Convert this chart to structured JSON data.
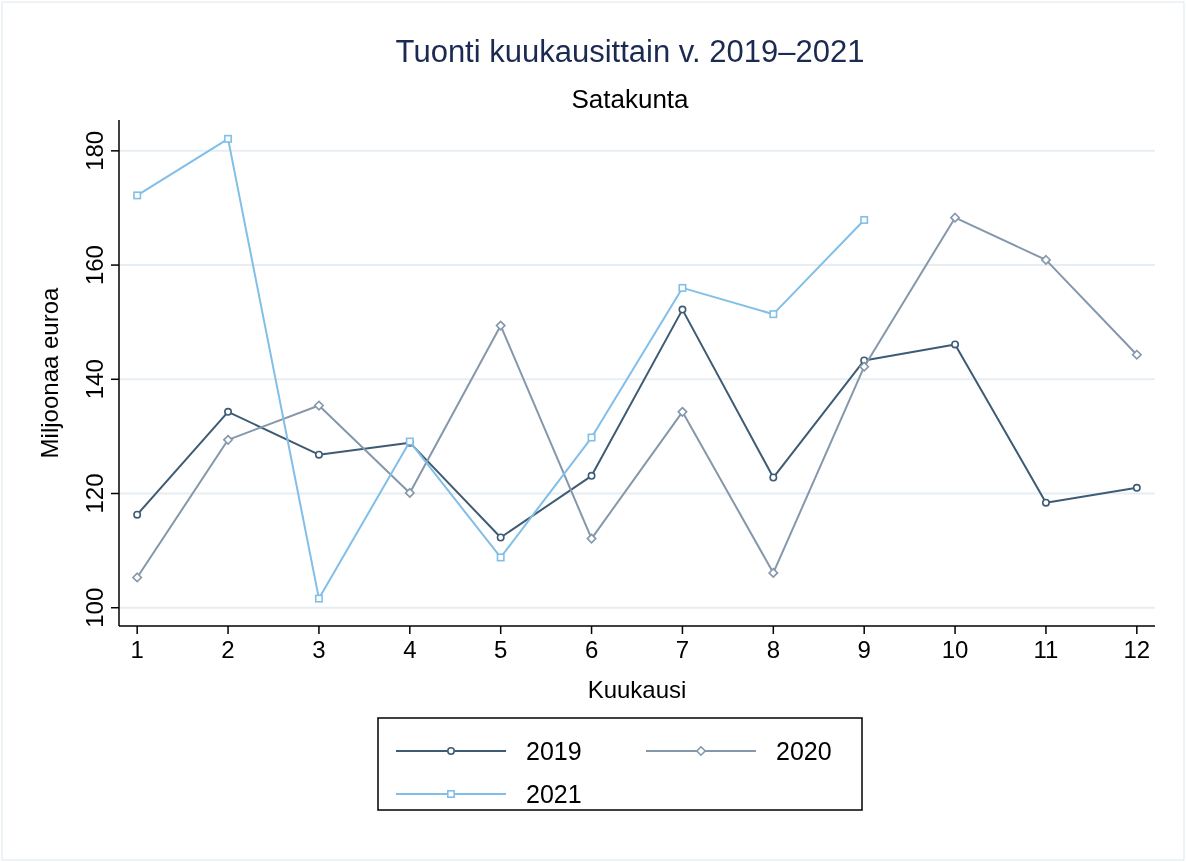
{
  "chart_data": {
    "type": "line",
    "title": "Tuonti kuukausittain v. 2019–2021",
    "subtitle": "Satakunta",
    "xlabel": "Kuukausi",
    "ylabel": "Miljoonaa euroa",
    "x": [
      1,
      2,
      3,
      4,
      5,
      6,
      7,
      8,
      9,
      10,
      11,
      12
    ],
    "xlim": [
      0.8,
      12.2
    ],
    "xticks": [
      1,
      2,
      3,
      4,
      5,
      6,
      7,
      8,
      9,
      10,
      11,
      12
    ],
    "ylim": [
      96.8,
      185.4
    ],
    "yticks": [
      100,
      120,
      140,
      160,
      180
    ],
    "grid": "y",
    "legend": "bottom",
    "series": [
      {
        "name": "2019",
        "color": "#3e5b74",
        "marker": "circle",
        "values": [
          116.3,
          134.3,
          126.8,
          128.9,
          112.3,
          123.1,
          152.2,
          122.8,
          143.3,
          146.1,
          118.4,
          121.0
        ]
      },
      {
        "name": "2020",
        "color": "#8597ab",
        "marker": "diamond",
        "values": [
          105.3,
          129.4,
          135.4,
          120.1,
          149.4,
          112.1,
          134.3,
          106.1,
          142.2,
          168.3,
          160.9,
          144.3
        ]
      },
      {
        "name": "2021",
        "color": "#82bfe8",
        "marker": "square",
        "values": [
          172.2,
          182.1,
          101.6,
          129.1,
          108.8,
          129.8,
          156.0,
          151.4,
          167.9,
          null,
          null,
          null
        ]
      }
    ]
  }
}
